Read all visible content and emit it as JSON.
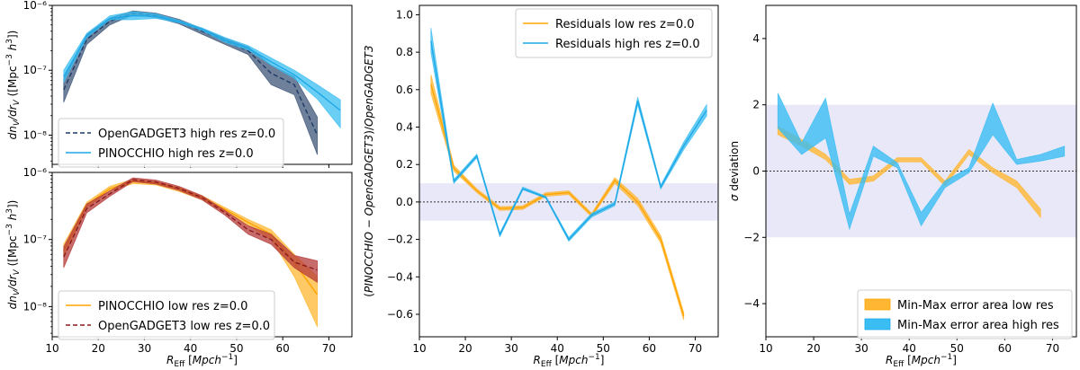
{
  "colors": {
    "orange": "#FFA500",
    "orange_fill": "#FFB733",
    "sky": "#1EA8E6",
    "sky_fill": "#39BDF2",
    "navy": "#1F3A66",
    "navy_fill": "#3E5678",
    "darkred": "#8B1A1A",
    "red_fill": "#B53A3A",
    "band": "#E8E8F8"
  },
  "chart_data": [
    {
      "id": "top-left",
      "type": "line",
      "yscale": "log",
      "ylabel": "dn_V/dr_V ([Mpc^-3 h^3])",
      "xlim": [
        10,
        75
      ],
      "ylim_log10": [
        -8.45,
        -6.0
      ],
      "xticks": [
        10,
        20,
        30,
        40,
        50,
        60,
        70
      ],
      "yticks": [
        {
          "exp": -8,
          "label": "10⁻⁸"
        },
        {
          "exp": -7,
          "label": "10⁻⁷"
        },
        {
          "exp": -6,
          "label": "10⁻⁶"
        }
      ],
      "x": [
        12.5,
        17.5,
        22.5,
        27.5,
        32.5,
        37.5,
        42.5,
        47.5,
        52.5,
        57.5,
        62.5,
        67.5,
        72.5
      ],
      "series": [
        {
          "name": "OpenGADGET3 high res z=0.0",
          "style": "dashed",
          "color": "navy",
          "values": [
            5e-08,
            3e-07,
            5.7e-07,
            7.6e-07,
            7e-07,
            5.6e-07,
            4e-07,
            2.8e-07,
            2e-07,
            9e-08,
            6e-08,
            1e-08,
            null
          ],
          "lower": [
            3.2e-08,
            2.5e-07,
            5e-07,
            7.1e-07,
            6.5e-07,
            5.2e-07,
            3.6e-07,
            2.5e-07,
            1.75e-07,
            6e-08,
            4.2e-08,
            5e-09,
            null
          ],
          "upper": [
            7.5e-08,
            3.6e-07,
            6.4e-07,
            8.2e-07,
            7.6e-07,
            6.1e-07,
            4.4e-07,
            3.1e-07,
            2.3e-07,
            1.2e-07,
            8e-08,
            1.9e-08,
            null
          ]
        },
        {
          "name": "PINOCCHIO high res z=0.0",
          "style": "solid",
          "color": "sky",
          "values": [
            8e-08,
            3.4e-07,
            6.3e-07,
            6.9e-07,
            6.8e-07,
            5.6e-07,
            4.3e-07,
            2.9e-07,
            2.2e-07,
            1.35e-07,
            8.5e-08,
            4.6e-08,
            2.4e-08
          ],
          "lower": [
            6.5e-08,
            3.2e-07,
            6e-07,
            6e-07,
            6.3e-07,
            5.4e-07,
            4.1e-07,
            2.7e-07,
            2.05e-07,
            1.2e-07,
            7.5e-08,
            3.6e-08,
            1.3e-08
          ],
          "upper": [
            1e-07,
            3.7e-07,
            6.9e-07,
            8e-07,
            7.4e-07,
            5.9e-07,
            4.5e-07,
            3.2e-07,
            2.4e-07,
            1.55e-07,
            1e-07,
            6e-08,
            3.5e-08
          ]
        }
      ]
    },
    {
      "id": "bottom-left",
      "type": "line",
      "yscale": "log",
      "ylabel": "dn_V/dr_V ([Mpc^-3 h^3])",
      "xlabel": "R_Eff [Mpch^-1]",
      "xlim": [
        10,
        75
      ],
      "ylim_log10": [
        -8.45,
        -6.0
      ],
      "xticks": [
        10,
        20,
        30,
        40,
        50,
        60,
        70
      ],
      "yticks": [
        {
          "exp": -8,
          "label": "10⁻⁸"
        },
        {
          "exp": -7,
          "label": "10⁻⁷"
        },
        {
          "exp": -6,
          "label": "10⁻⁶"
        }
      ],
      "x": [
        12.5,
        17.5,
        22.5,
        27.5,
        32.5,
        37.5,
        42.5,
        47.5,
        52.5,
        57.5,
        62.5,
        67.5,
        72.5
      ],
      "series": [
        {
          "name": "PINOCCHIO low res z=0.0",
          "style": "solid",
          "color": "orange",
          "values": [
            6.8e-08,
            3.3e-07,
            5.7e-07,
            7.3e-07,
            6.9e-07,
            5.6e-07,
            4.2e-07,
            2.8e-07,
            1.8e-07,
            1.2e-07,
            4.5e-08,
            1.5e-08,
            null
          ],
          "lower": [
            5.5e-08,
            3e-07,
            5.3e-07,
            6.8e-07,
            6.5e-07,
            5.2e-07,
            3.9e-07,
            2.6e-07,
            1.6e-07,
            1e-07,
            2.8e-08,
            5e-09,
            null
          ],
          "upper": [
            8.5e-08,
            3.6e-07,
            6.2e-07,
            7.9e-07,
            7.3e-07,
            6e-07,
            4.5e-07,
            3e-07,
            2e-07,
            1.4e-07,
            6e-08,
            2.8e-08,
            null
          ]
        },
        {
          "name": "OpenGADGET3 low res z=0.0",
          "style": "dashed",
          "color": "darkred",
          "values": [
            5.5e-08,
            2.9e-07,
            4.8e-07,
            7.8e-07,
            7.2e-07,
            5.8e-07,
            4.2e-07,
            2.5e-07,
            1.4e-07,
            1e-07,
            4.6e-08,
            3.5e-08,
            null
          ],
          "lower": [
            3.8e-08,
            2.5e-07,
            4.4e-07,
            7.3e-07,
            6.7e-07,
            5.4e-07,
            3.9e-07,
            2.3e-07,
            1.2e-07,
            8.5e-08,
            3.8e-08,
            2.3e-08,
            null
          ],
          "upper": [
            7.8e-08,
            3.4e-07,
            5.3e-07,
            8.3e-07,
            7.7e-07,
            6.2e-07,
            4.5e-07,
            2.7e-07,
            1.6e-07,
            1.2e-07,
            5.8e-08,
            4.8e-08,
            null
          ]
        }
      ]
    },
    {
      "id": "middle",
      "type": "line",
      "ylabel": "(PINOCCHIO − OpenGADGET3)/OpenGADGET3",
      "xlabel": "R_Eff [Mpch^-1]",
      "xlim": [
        10,
        75
      ],
      "ylim": [
        -0.72,
        1.05
      ],
      "xticks": [
        10,
        20,
        30,
        40,
        50,
        60,
        70
      ],
      "yticks": [
        -0.6,
        -0.4,
        -0.2,
        0.0,
        0.2,
        0.4,
        0.6,
        0.8,
        1.0
      ],
      "ytick_labels": [
        "−0.6",
        "−0.4",
        "−0.2",
        "0.0",
        "0.2",
        "0.4",
        "0.6",
        "0.8",
        "1.0"
      ],
      "band": [
        -0.1,
        0.1
      ],
      "hline": 0.0,
      "x": [
        12.5,
        17.5,
        22.5,
        27.5,
        32.5,
        37.5,
        42.5,
        47.5,
        52.5,
        57.5,
        62.5,
        67.5,
        72.5
      ],
      "series": [
        {
          "name": "Residuals low res z=0.0",
          "color": "orange",
          "values": [
            0.63,
            0.18,
            0.06,
            -0.035,
            -0.03,
            0.04,
            0.05,
            -0.07,
            0.115,
            0.0,
            -0.2,
            -0.61,
            null
          ],
          "lower": [
            0.58,
            0.165,
            0.05,
            -0.045,
            -0.04,
            0.03,
            0.04,
            -0.08,
            0.1,
            -0.02,
            -0.22,
            -0.63,
            null
          ],
          "upper": [
            0.68,
            0.195,
            0.07,
            -0.025,
            -0.02,
            0.05,
            0.06,
            -0.06,
            0.13,
            0.02,
            -0.18,
            -0.59,
            null
          ]
        },
        {
          "name": "Residuals high res z=0.0",
          "color": "sky",
          "values": [
            0.86,
            0.11,
            0.245,
            -0.175,
            0.07,
            0.025,
            -0.2,
            -0.07,
            -0.01,
            0.54,
            0.08,
            0.3,
            0.49
          ],
          "lower": [
            0.8,
            0.1,
            0.235,
            -0.185,
            0.065,
            0.02,
            -0.21,
            -0.08,
            -0.02,
            0.52,
            0.07,
            0.28,
            0.46
          ],
          "upper": [
            0.93,
            0.12,
            0.255,
            -0.165,
            0.08,
            0.03,
            -0.19,
            -0.06,
            0.0,
            0.56,
            0.09,
            0.32,
            0.52
          ]
        }
      ]
    },
    {
      "id": "right",
      "type": "area",
      "ylabel": "σ deviation",
      "xlabel": "R_Eff [Mpch^-1]",
      "xlim": [
        10,
        75
      ],
      "ylim": [
        -5.0,
        5.0
      ],
      "xticks": [
        10,
        20,
        30,
        40,
        50,
        60,
        70
      ],
      "yticks": [
        -4,
        -2,
        0,
        2,
        4
      ],
      "ytick_labels": [
        "−4",
        "−2",
        "0",
        "2",
        "4"
      ],
      "band": [
        -2,
        2
      ],
      "hline": 0,
      "x": [
        12.5,
        17.5,
        22.5,
        27.5,
        32.5,
        37.5,
        42.5,
        47.5,
        52.5,
        57.5,
        62.5,
        67.5,
        72.5
      ],
      "series": [
        {
          "name": "Min-Max error area low res",
          "color": "orange",
          "lower": [
            1.1,
            0.75,
            0.35,
            -0.4,
            -0.3,
            0.28,
            0.28,
            -0.45,
            0.5,
            -0.05,
            -0.5,
            -1.4,
            null
          ],
          "upper": [
            1.35,
            0.95,
            0.5,
            -0.25,
            -0.15,
            0.4,
            0.4,
            -0.3,
            0.65,
            0.1,
            -0.3,
            -1.15,
            null
          ]
        },
        {
          "name": "Min-Max error area high res",
          "color": "sky",
          "lower": [
            1.3,
            0.5,
            1.0,
            -1.75,
            0.45,
            0.1,
            -1.65,
            -0.5,
            -0.05,
            1.1,
            0.2,
            0.3,
            0.45
          ],
          "upper": [
            2.35,
            0.85,
            2.2,
            -1.3,
            0.75,
            0.25,
            -1.25,
            -0.3,
            0.1,
            2.05,
            0.35,
            0.5,
            0.75
          ]
        }
      ]
    }
  ]
}
